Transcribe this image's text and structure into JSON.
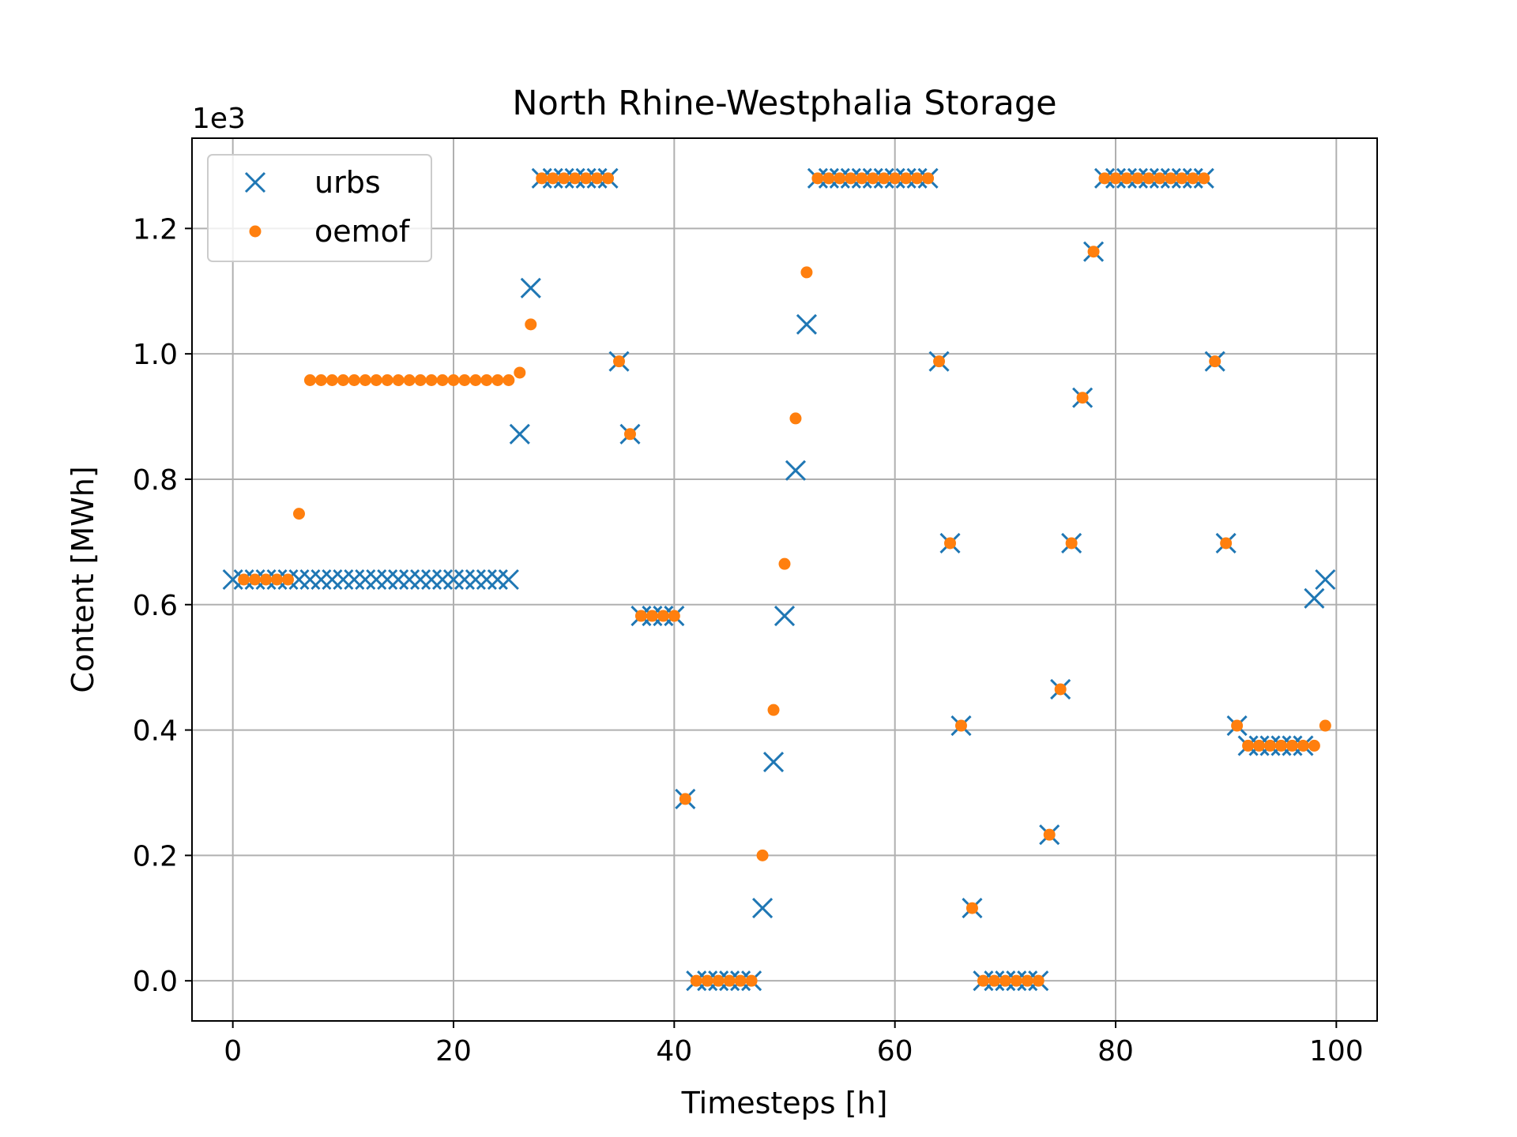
{
  "chart_data": {
    "type": "scatter",
    "title": "North Rhine-Westphalia Storage",
    "xlabel": "Timesteps [h]",
    "ylabel": "Content [MWh]",
    "y_offset_label": "1e3",
    "xlim": [
      -3.7,
      103.7
    ],
    "ylim": [
      -0.064,
      1.344
    ],
    "xticks": [
      0,
      20,
      40,
      60,
      80,
      100
    ],
    "xtick_labels": [
      "0",
      "20",
      "40",
      "60",
      "80",
      "100"
    ],
    "yticks": [
      0.0,
      0.2,
      0.4,
      0.6,
      0.8,
      1.0,
      1.2
    ],
    "ytick_labels": [
      "0.0",
      "0.2",
      "0.4",
      "0.6",
      "0.8",
      "1.0",
      "1.2"
    ],
    "grid": true,
    "legend_position": "upper-left",
    "series": [
      {
        "name": "urbs",
        "marker": "x",
        "color": "#1f77b4",
        "points": [
          [
            0,
            0.64
          ],
          [
            1,
            0.64
          ],
          [
            2,
            0.64
          ],
          [
            3,
            0.64
          ],
          [
            4,
            0.64
          ],
          [
            5,
            0.64
          ],
          [
            6,
            0.64
          ],
          [
            7,
            0.64
          ],
          [
            8,
            0.64
          ],
          [
            9,
            0.64
          ],
          [
            10,
            0.64
          ],
          [
            11,
            0.64
          ],
          [
            12,
            0.64
          ],
          [
            13,
            0.64
          ],
          [
            14,
            0.64
          ],
          [
            15,
            0.64
          ],
          [
            16,
            0.64
          ],
          [
            17,
            0.64
          ],
          [
            18,
            0.64
          ],
          [
            19,
            0.64
          ],
          [
            20,
            0.64
          ],
          [
            21,
            0.64
          ],
          [
            22,
            0.64
          ],
          [
            23,
            0.64
          ],
          [
            24,
            0.64
          ],
          [
            25,
            0.64
          ],
          [
            26,
            0.872
          ],
          [
            27,
            1.105
          ],
          [
            28,
            1.28
          ],
          [
            29,
            1.28
          ],
          [
            30,
            1.28
          ],
          [
            31,
            1.28
          ],
          [
            32,
            1.28
          ],
          [
            33,
            1.28
          ],
          [
            34,
            1.28
          ],
          [
            35,
            0.988
          ],
          [
            36,
            0.872
          ],
          [
            37,
            0.582
          ],
          [
            38,
            0.582
          ],
          [
            39,
            0.582
          ],
          [
            40,
            0.582
          ],
          [
            41,
            0.29
          ],
          [
            42,
            0.0
          ],
          [
            43,
            0.0
          ],
          [
            44,
            0.0
          ],
          [
            45,
            0.0
          ],
          [
            46,
            0.0
          ],
          [
            47,
            0.0
          ],
          [
            48,
            0.116
          ],
          [
            49,
            0.349
          ],
          [
            50,
            0.582
          ],
          [
            51,
            0.814
          ],
          [
            52,
            1.047
          ],
          [
            53,
            1.28
          ],
          [
            54,
            1.28
          ],
          [
            55,
            1.28
          ],
          [
            56,
            1.28
          ],
          [
            57,
            1.28
          ],
          [
            58,
            1.28
          ],
          [
            59,
            1.28
          ],
          [
            60,
            1.28
          ],
          [
            61,
            1.28
          ],
          [
            62,
            1.28
          ],
          [
            63,
            1.28
          ],
          [
            64,
            0.988
          ],
          [
            65,
            0.698
          ],
          [
            66,
            0.407
          ],
          [
            67,
            0.116
          ],
          [
            68,
            0.0
          ],
          [
            69,
            0.0
          ],
          [
            70,
            0.0
          ],
          [
            71,
            0.0
          ],
          [
            72,
            0.0
          ],
          [
            73,
            0.0
          ],
          [
            74,
            0.233
          ],
          [
            75,
            0.465
          ],
          [
            76,
            0.698
          ],
          [
            77,
            0.93
          ],
          [
            78,
            1.163
          ],
          [
            79,
            1.28
          ],
          [
            80,
            1.28
          ],
          [
            81,
            1.28
          ],
          [
            82,
            1.28
          ],
          [
            83,
            1.28
          ],
          [
            84,
            1.28
          ],
          [
            85,
            1.28
          ],
          [
            86,
            1.28
          ],
          [
            87,
            1.28
          ],
          [
            88,
            1.28
          ],
          [
            89,
            0.988
          ],
          [
            90,
            0.698
          ],
          [
            91,
            0.407
          ],
          [
            92,
            0.375
          ],
          [
            93,
            0.375
          ],
          [
            94,
            0.375
          ],
          [
            95,
            0.375
          ],
          [
            96,
            0.375
          ],
          [
            97,
            0.375
          ],
          [
            98,
            0.61
          ],
          [
            99,
            0.64
          ]
        ]
      },
      {
        "name": "oemof",
        "marker": "o",
        "color": "#ff7f0e",
        "points": [
          [
            1,
            0.64
          ],
          [
            2,
            0.64
          ],
          [
            3,
            0.64
          ],
          [
            4,
            0.64
          ],
          [
            5,
            0.64
          ],
          [
            6,
            0.745
          ],
          [
            7,
            0.958
          ],
          [
            8,
            0.958
          ],
          [
            9,
            0.958
          ],
          [
            10,
            0.958
          ],
          [
            11,
            0.958
          ],
          [
            12,
            0.958
          ],
          [
            13,
            0.958
          ],
          [
            14,
            0.958
          ],
          [
            15,
            0.958
          ],
          [
            16,
            0.958
          ],
          [
            17,
            0.958
          ],
          [
            18,
            0.958
          ],
          [
            19,
            0.958
          ],
          [
            20,
            0.958
          ],
          [
            21,
            0.958
          ],
          [
            22,
            0.958
          ],
          [
            23,
            0.958
          ],
          [
            24,
            0.958
          ],
          [
            25,
            0.958
          ],
          [
            26,
            0.97
          ],
          [
            27,
            1.047
          ],
          [
            28,
            1.28
          ],
          [
            29,
            1.28
          ],
          [
            30,
            1.28
          ],
          [
            31,
            1.28
          ],
          [
            32,
            1.28
          ],
          [
            33,
            1.28
          ],
          [
            34,
            1.28
          ],
          [
            35,
            0.988
          ],
          [
            36,
            0.872
          ],
          [
            37,
            0.582
          ],
          [
            38,
            0.582
          ],
          [
            39,
            0.582
          ],
          [
            40,
            0.582
          ],
          [
            41,
            0.29
          ],
          [
            42,
            0.0
          ],
          [
            43,
            0.0
          ],
          [
            44,
            0.0
          ],
          [
            45,
            0.0
          ],
          [
            46,
            0.0
          ],
          [
            47,
            0.0
          ],
          [
            48,
            0.2
          ],
          [
            49,
            0.432
          ],
          [
            50,
            0.665
          ],
          [
            51,
            0.897
          ],
          [
            52,
            1.13
          ],
          [
            53,
            1.28
          ],
          [
            54,
            1.28
          ],
          [
            55,
            1.28
          ],
          [
            56,
            1.28
          ],
          [
            57,
            1.28
          ],
          [
            58,
            1.28
          ],
          [
            59,
            1.28
          ],
          [
            60,
            1.28
          ],
          [
            61,
            1.28
          ],
          [
            62,
            1.28
          ],
          [
            63,
            1.28
          ],
          [
            64,
            0.988
          ],
          [
            65,
            0.698
          ],
          [
            66,
            0.407
          ],
          [
            67,
            0.116
          ],
          [
            68,
            0.0
          ],
          [
            69,
            0.0
          ],
          [
            70,
            0.0
          ],
          [
            71,
            0.0
          ],
          [
            72,
            0.0
          ],
          [
            73,
            0.0
          ],
          [
            74,
            0.233
          ],
          [
            75,
            0.465
          ],
          [
            76,
            0.698
          ],
          [
            77,
            0.93
          ],
          [
            78,
            1.163
          ],
          [
            79,
            1.28
          ],
          [
            80,
            1.28
          ],
          [
            81,
            1.28
          ],
          [
            82,
            1.28
          ],
          [
            83,
            1.28
          ],
          [
            84,
            1.28
          ],
          [
            85,
            1.28
          ],
          [
            86,
            1.28
          ],
          [
            87,
            1.28
          ],
          [
            88,
            1.28
          ],
          [
            89,
            0.988
          ],
          [
            90,
            0.698
          ],
          [
            91,
            0.407
          ],
          [
            92,
            0.375
          ],
          [
            93,
            0.375
          ],
          [
            94,
            0.375
          ],
          [
            95,
            0.375
          ],
          [
            96,
            0.375
          ],
          [
            97,
            0.375
          ],
          [
            98,
            0.375
          ],
          [
            99,
            0.407
          ]
        ]
      }
    ]
  }
}
